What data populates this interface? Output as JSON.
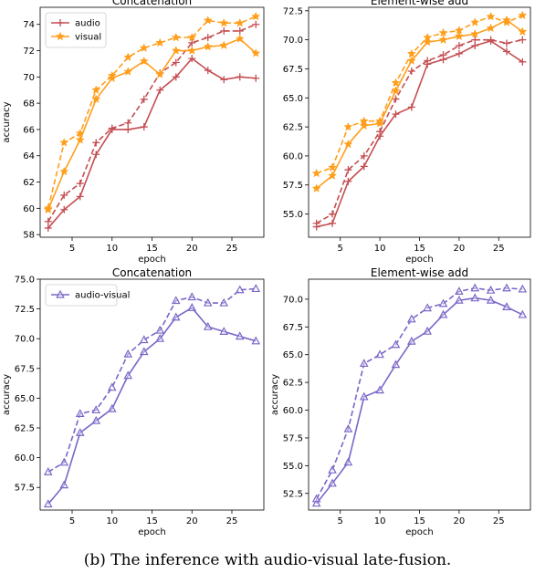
{
  "caption": "(b) The inference with audio-visual late-fusion.",
  "colors": {
    "audio": "#c44e52",
    "visual": "#ff9e1b",
    "audio_visual": "#7b66c8"
  },
  "chart_data": [
    {
      "type": "line",
      "title": "Concatenation",
      "xlabel": "epoch",
      "ylabel": "accuracy",
      "xlim": [
        1,
        29
      ],
      "ylim": [
        57.8,
        75.3
      ],
      "xticks": [
        5,
        10,
        15,
        20,
        25
      ],
      "yticks": [
        58,
        60,
        62,
        64,
        66,
        68,
        70,
        72,
        74
      ],
      "ytick_labels": [
        "58",
        "60",
        "62",
        "64",
        "66",
        "68",
        "70",
        "72",
        "74"
      ],
      "legend": {
        "position": "top-left",
        "entries": [
          "audio",
          "visual"
        ]
      },
      "x": [
        2,
        4,
        6,
        8,
        10,
        12,
        14,
        16,
        18,
        20,
        22,
        24,
        26,
        28
      ],
      "series": [
        {
          "name": "audio",
          "style": "solid",
          "marker": "plus",
          "color": "audio",
          "values": [
            58.5,
            59.9,
            60.9,
            64.1,
            66.0,
            66.0,
            66.2,
            69.0,
            70.0,
            71.4,
            70.5,
            69.8,
            70.0,
            69.9
          ]
        },
        {
          "style": "dashed",
          "marker": "plus",
          "color": "audio",
          "values": [
            59.0,
            61.0,
            61.9,
            65.0,
            66.1,
            66.5,
            68.3,
            70.3,
            71.1,
            72.6,
            73.0,
            73.5,
            73.5,
            74.0
          ]
        },
        {
          "name": "visual",
          "style": "solid",
          "marker": "star",
          "color": "visual",
          "values": [
            59.9,
            62.8,
            65.2,
            68.3,
            69.9,
            70.4,
            71.2,
            70.2,
            72.0,
            72.0,
            72.3,
            72.4,
            72.9,
            71.8
          ]
        },
        {
          "style": "dashed",
          "marker": "star",
          "color": "visual",
          "values": [
            60.0,
            65.0,
            65.7,
            69.0,
            70.1,
            71.5,
            72.2,
            72.6,
            73.0,
            73.0,
            74.3,
            74.1,
            74.1,
            74.6
          ]
        }
      ]
    },
    {
      "type": "line",
      "title": "Element-wise add",
      "xlabel": "epoch",
      "ylabel": "",
      "xlim": [
        1,
        29
      ],
      "ylim": [
        53.0,
        72.8
      ],
      "xticks": [
        5,
        10,
        15,
        20,
        25
      ],
      "yticks": [
        55,
        57.5,
        60,
        62.5,
        65,
        67.5,
        70,
        72.5
      ],
      "ytick_labels": [
        "55.0",
        "57.5",
        "60.0",
        "62.5",
        "65.0",
        "67.5",
        "70.0",
        "72.5"
      ],
      "x": [
        2,
        4,
        6,
        8,
        10,
        12,
        14,
        16,
        18,
        20,
        22,
        24,
        26,
        28
      ],
      "series": [
        {
          "style": "solid",
          "marker": "plus",
          "color": "audio",
          "values": [
            53.9,
            54.2,
            57.8,
            59.1,
            61.7,
            63.6,
            64.2,
            67.9,
            68.3,
            68.8,
            69.5,
            69.9,
            69.0,
            68.1
          ]
        },
        {
          "style": "dashed",
          "marker": "plus",
          "color": "audio",
          "values": [
            54.2,
            55.0,
            58.8,
            60.0,
            62.1,
            64.9,
            67.3,
            68.2,
            68.7,
            69.5,
            70.0,
            70.0,
            69.7,
            70.0
          ]
        },
        {
          "style": "solid",
          "marker": "star",
          "color": "visual",
          "values": [
            57.2,
            58.3,
            61.0,
            62.6,
            62.8,
            65.6,
            68.2,
            69.8,
            70.0,
            70.3,
            70.5,
            71.0,
            71.7,
            70.7
          ]
        },
        {
          "style": "dashed",
          "marker": "star",
          "color": "visual",
          "values": [
            58.5,
            59.0,
            62.5,
            63.0,
            63.0,
            66.3,
            68.8,
            70.2,
            70.6,
            70.8,
            71.5,
            72.0,
            71.5,
            72.1
          ]
        }
      ]
    },
    {
      "type": "line",
      "title": "Concatenation",
      "xlabel": "epoch",
      "ylabel": "accuracy",
      "xlim": [
        1,
        29
      ],
      "ylim": [
        55.6,
        75.0
      ],
      "xticks": [
        5,
        10,
        15,
        20,
        25
      ],
      "yticks": [
        57.5,
        60,
        62.5,
        65,
        67.5,
        70,
        72.5,
        75
      ],
      "ytick_labels": [
        "57.5",
        "60.0",
        "62.5",
        "65.0",
        "67.5",
        "70.0",
        "72.5",
        "75.0"
      ],
      "legend": {
        "position": "top-left",
        "entries": [
          "audio-visual"
        ]
      },
      "x": [
        2,
        4,
        6,
        8,
        10,
        12,
        14,
        16,
        18,
        20,
        22,
        24,
        26,
        28
      ],
      "series": [
        {
          "name": "audio-visual",
          "style": "solid",
          "marker": "triangle",
          "color": "audio_visual",
          "values": [
            56.1,
            57.7,
            62.1,
            63.1,
            64.1,
            66.9,
            68.9,
            70.0,
            71.8,
            72.6,
            71.0,
            70.6,
            70.2,
            69.8
          ]
        },
        {
          "style": "dashed",
          "marker": "triangle",
          "color": "audio_visual",
          "values": [
            58.8,
            59.6,
            63.7,
            64.0,
            65.9,
            68.7,
            69.9,
            70.7,
            73.2,
            73.5,
            73.0,
            73.0,
            74.1,
            74.2
          ]
        }
      ]
    },
    {
      "type": "line",
      "title": "Element-wise add",
      "xlabel": "epoch",
      "ylabel": "accuracy",
      "xlim": [
        1,
        29
      ],
      "ylim": [
        51.0,
        71.8
      ],
      "xticks": [
        5,
        10,
        15,
        20,
        25
      ],
      "yticks": [
        52.5,
        55,
        57.5,
        60,
        62.5,
        65,
        67.5,
        70
      ],
      "ytick_labels": [
        "52.5",
        "55.0",
        "57.5",
        "60.0",
        "62.5",
        "65.0",
        "67.5",
        "70.0"
      ],
      "x": [
        2,
        4,
        6,
        8,
        10,
        12,
        14,
        16,
        18,
        20,
        22,
        24,
        26,
        28
      ],
      "series": [
        {
          "style": "solid",
          "marker": "triangle",
          "color": "audio_visual",
          "values": [
            51.6,
            53.4,
            55.3,
            61.2,
            61.8,
            64.1,
            66.2,
            67.1,
            68.6,
            69.9,
            70.1,
            69.9,
            69.3,
            68.6
          ]
        },
        {
          "style": "dashed",
          "marker": "triangle",
          "color": "audio_visual",
          "values": [
            52.0,
            54.6,
            58.3,
            64.2,
            65.0,
            65.9,
            68.2,
            69.2,
            69.6,
            70.7,
            71.0,
            70.8,
            71.0,
            70.9
          ]
        }
      ]
    }
  ]
}
